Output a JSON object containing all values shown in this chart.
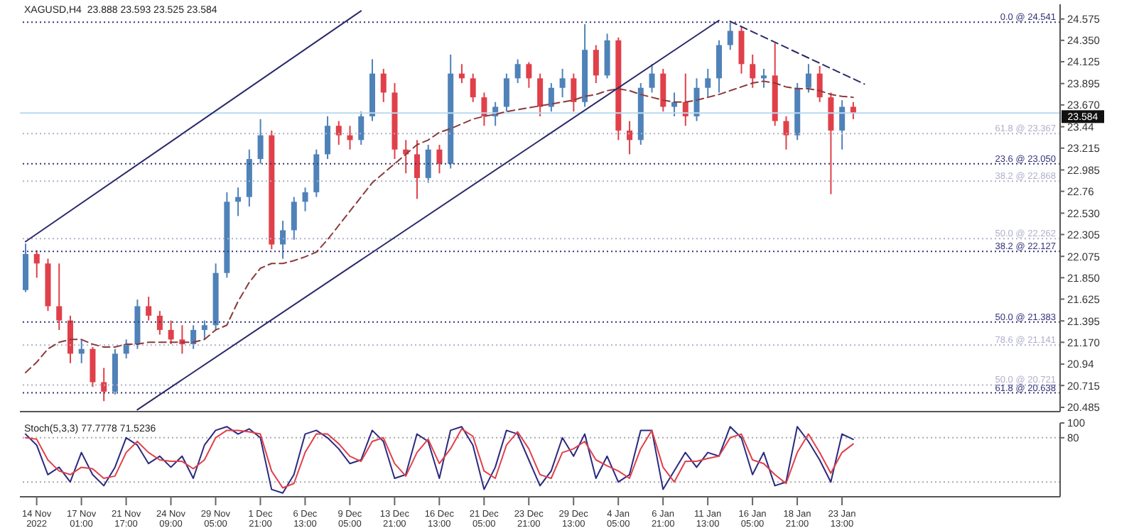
{
  "chart_data": [
    {
      "type": "candlestick",
      "title": "XAGUSD,H4  23.888 23.593 23.525 23.584",
      "categories": [
        null,
        "14 Nov 2022",
        null,
        null,
        null,
        "17 Nov 01:00",
        null,
        null,
        null,
        "21 Nov 17:00",
        null,
        null,
        null,
        "24 Nov 09:00",
        null,
        null,
        null,
        "29 Nov 05:00",
        null,
        null,
        null,
        "1 Dec 21:00",
        null,
        null,
        null,
        "6 Dec 13:00",
        null,
        null,
        null,
        "9 Dec 05:00",
        null,
        null,
        null,
        "13 Dec 21:00",
        null,
        null,
        null,
        "16 Dec 13:00",
        null,
        null,
        null,
        "21 Dec 05:00",
        null,
        null,
        null,
        "23 Dec 21:00",
        null,
        null,
        null,
        "29 Dec 13:00",
        null,
        null,
        null,
        "4 Jan 05:00",
        null,
        null,
        null,
        "6 Jan 21:00",
        null,
        null,
        null,
        "11 Jan 13:00",
        null,
        null,
        null,
        "16 Jan 05:00",
        null,
        null,
        null,
        "18 Jan 21:00",
        null,
        null,
        null,
        "23 Jan 13:00",
        null,
        null,
        null,
        null,
        null,
        null,
        null,
        null,
        null,
        null,
        null,
        null,
        null,
        null,
        null,
        null,
        null,
        null,
        null
      ],
      "ohlc": [
        [
          21.72,
          22.21,
          21.7,
          22.1
        ],
        [
          22.1,
          22.14,
          21.85,
          22.0
        ],
        [
          22.0,
          22.05,
          21.5,
          21.55
        ],
        [
          21.55,
          22.0,
          21.3,
          21.4
        ],
        [
          21.4,
          21.45,
          20.95,
          21.05
        ],
        [
          21.05,
          21.2,
          20.95,
          21.1
        ],
        [
          21.1,
          21.12,
          20.7,
          20.75
        ],
        [
          20.75,
          20.9,
          20.55,
          20.65
        ],
        [
          20.65,
          21.1,
          20.62,
          21.05
        ],
        [
          21.05,
          21.2,
          21.0,
          21.15
        ],
        [
          21.15,
          21.62,
          21.1,
          21.55
        ],
        [
          21.55,
          21.65,
          21.4,
          21.45
        ],
        [
          21.45,
          21.5,
          21.25,
          21.3
        ],
        [
          21.3,
          21.4,
          21.15,
          21.2
        ],
        [
          21.2,
          21.35,
          21.05,
          21.15
        ],
        [
          21.15,
          21.35,
          21.1,
          21.3
        ],
        [
          21.3,
          21.4,
          21.2,
          21.35
        ],
        [
          21.35,
          22.0,
          21.3,
          21.9
        ],
        [
          21.9,
          22.75,
          21.85,
          22.65
        ],
        [
          22.65,
          22.8,
          22.5,
          22.7
        ],
        [
          22.7,
          23.2,
          22.6,
          23.1
        ],
        [
          23.1,
          23.52,
          23.05,
          23.35
        ],
        [
          23.35,
          23.4,
          22.15,
          22.2
        ],
        [
          22.2,
          22.45,
          22.05,
          22.35
        ],
        [
          22.35,
          22.7,
          22.25,
          22.65
        ],
        [
          22.65,
          22.8,
          22.55,
          22.75
        ],
        [
          22.75,
          23.2,
          22.7,
          23.15
        ],
        [
          23.15,
          23.55,
          23.1,
          23.45
        ],
        [
          23.45,
          23.5,
          23.25,
          23.35
        ],
        [
          23.35,
          23.45,
          23.2,
          23.3
        ],
        [
          23.3,
          23.6,
          23.25,
          23.55
        ],
        [
          23.55,
          24.15,
          23.5,
          24.0
        ],
        [
          24.0,
          24.05,
          23.7,
          23.8
        ],
        [
          23.8,
          23.9,
          23.1,
          23.2
        ],
        [
          23.2,
          23.3,
          22.95,
          23.15
        ],
        [
          23.15,
          23.3,
          22.68,
          22.9
        ],
        [
          22.9,
          23.25,
          22.85,
          23.2
        ],
        [
          23.2,
          23.25,
          22.95,
          23.05
        ],
        [
          23.05,
          24.2,
          23.0,
          24.0
        ],
        [
          24.0,
          24.1,
          23.9,
          23.95
        ],
        [
          23.95,
          24.0,
          23.7,
          23.75
        ],
        [
          23.75,
          23.8,
          23.45,
          23.55
        ],
        [
          23.55,
          23.7,
          23.45,
          23.65
        ],
        [
          23.65,
          24.0,
          23.6,
          23.95
        ],
        [
          23.95,
          24.15,
          23.9,
          24.1
        ],
        [
          24.1,
          24.12,
          23.85,
          23.95
        ],
        [
          23.95,
          24.0,
          23.55,
          23.65
        ],
        [
          23.65,
          23.9,
          23.6,
          23.85
        ],
        [
          23.85,
          24.05,
          23.75,
          23.95
        ],
        [
          23.95,
          24.0,
          23.6,
          23.7
        ],
        [
          23.7,
          24.52,
          23.65,
          24.25
        ],
        [
          24.25,
          24.3,
          23.9,
          23.98
        ],
        [
          23.98,
          24.42,
          23.95,
          24.35
        ],
        [
          24.35,
          24.38,
          23.3,
          23.4
        ],
        [
          23.4,
          23.5,
          23.15,
          23.3
        ],
        [
          23.3,
          23.9,
          23.25,
          23.85
        ],
        [
          23.85,
          24.1,
          23.8,
          24.0
        ],
        [
          24.0,
          24.05,
          23.6,
          23.65
        ],
        [
          23.65,
          23.8,
          23.55,
          23.7
        ],
        [
          23.7,
          24.0,
          23.45,
          23.55
        ],
        [
          23.55,
          23.95,
          23.5,
          23.85
        ],
        [
          23.85,
          24.05,
          23.75,
          23.95
        ],
        [
          23.95,
          24.35,
          23.8,
          24.3
        ],
        [
          24.3,
          24.54,
          24.25,
          24.45
        ],
        [
          24.45,
          24.5,
          24.0,
          24.1
        ],
        [
          24.1,
          24.2,
          23.85,
          23.95
        ],
        [
          23.95,
          24.05,
          23.85,
          23.98
        ],
        [
          23.98,
          24.32,
          23.45,
          23.5
        ],
        [
          23.5,
          23.55,
          23.2,
          23.35
        ],
        [
          23.35,
          23.9,
          23.3,
          23.85
        ],
        [
          23.85,
          24.1,
          23.8,
          24.0
        ],
        [
          24.0,
          24.08,
          23.7,
          23.75
        ],
        [
          23.75,
          23.8,
          22.73,
          23.4
        ],
        [
          23.4,
          23.72,
          23.2,
          23.65
        ],
        [
          23.65,
          23.7,
          23.52,
          23.584
        ],
        null,
        null,
        null,
        null,
        null,
        null,
        null,
        null,
        null,
        null,
        null,
        null,
        null,
        null,
        null,
        null,
        null,
        null
      ],
      "colors": [
        "#4f82b8",
        "#e0404a",
        "#e0404a",
        "#e0404a",
        "#e0404a",
        "#4f82b8",
        "#e0404a",
        "#e0404a",
        "#4f82b8",
        "#4f82b8",
        "#4f82b8",
        "#e0404a",
        "#e0404a",
        "#e0404a",
        "#e0404a",
        "#4f82b8",
        "#4f82b8",
        "#4f82b8",
        "#4f82b8",
        "#4f82b8",
        "#4f82b8",
        "#4f82b8",
        "#e0404a",
        "#4f82b8",
        "#4f82b8",
        "#4f82b8",
        "#4f82b8",
        "#4f82b8",
        "#e0404a",
        "#e0404a",
        "#4f82b8",
        "#4f82b8",
        "#e0404a",
        "#e0404a",
        "#e0404a",
        "#e0404a",
        "#4f82b8",
        "#e0404a",
        "#4f82b8",
        "#e0404a",
        "#e0404a",
        "#e0404a",
        "#4f82b8",
        "#4f82b8",
        "#4f82b8",
        "#e0404a",
        "#e0404a",
        "#4f82b8",
        "#4f82b8",
        "#e0404a",
        "#4f82b8",
        "#e0404a",
        "#4f82b8",
        "#e0404a",
        "#e0404a",
        "#4f82b8",
        "#4f82b8",
        "#e0404a",
        "#4f82b8",
        "#e0404a",
        "#4f82b8",
        "#4f82b8",
        "#4f82b8",
        "#4f82b8",
        "#e0404a",
        "#e0404a",
        "#4f82b8",
        "#e0404a",
        "#e0404a",
        "#4f82b8",
        "#4f82b8",
        "#e0404a",
        "#e0404a",
        "#4f82b8",
        "#e0404a",
        null,
        null,
        null,
        null,
        null,
        null,
        null,
        null,
        null,
        null,
        null,
        null,
        null,
        null,
        null,
        null,
        null,
        null
      ],
      "series": [
        {
          "type": "line",
          "color": "#8b3a3a",
          "line_style": "dashed",
          "values": [
            20.85,
            20.96,
            21.1,
            21.17,
            21.2,
            21.2,
            21.15,
            21.12,
            21.12,
            21.15,
            21.15,
            21.17,
            21.17,
            21.17,
            21.17,
            21.17,
            21.2,
            21.3,
            21.35,
            21.6,
            21.8,
            21.95,
            22.0,
            22.0,
            22.03,
            22.07,
            22.12,
            22.25,
            22.4,
            22.55,
            22.7,
            22.85,
            22.95,
            23.05,
            23.15,
            23.25,
            23.3,
            23.38,
            23.42,
            23.47,
            23.52,
            23.55,
            23.57,
            23.6,
            23.62,
            23.64,
            23.66,
            23.68,
            23.7,
            23.72,
            23.76,
            23.78,
            23.82,
            23.84,
            23.82,
            23.78,
            23.75,
            23.72,
            23.7,
            23.7,
            23.72,
            23.75,
            23.78,
            23.82,
            23.86,
            23.9,
            23.92,
            23.9,
            23.86,
            23.84,
            23.84,
            23.82,
            23.78,
            23.76,
            23.75,
            null,
            null,
            null,
            null,
            null,
            null,
            null,
            null,
            null,
            null,
            null,
            null,
            null,
            null,
            null,
            null,
            null,
            null
          ]
        },
        {
          "type": "line",
          "color": "#2a2a6a",
          "line_style": "solid",
          "values": [
            22.23,
            null,
            null,
            null,
            null,
            null,
            null,
            null,
            null,
            null,
            null,
            null,
            null,
            null,
            null,
            null,
            null,
            null,
            null,
            null,
            null,
            null,
            null,
            null,
            null,
            null,
            null,
            null,
            null,
            null,
            24.66,
            null,
            null,
            null,
            null,
            null,
            null,
            null,
            null,
            null,
            null,
            null,
            null,
            null,
            null,
            null,
            null,
            null,
            null,
            null,
            null,
            null,
            null,
            null,
            null,
            null,
            null,
            null,
            null,
            null,
            null,
            null,
            null,
            null,
            null,
            null,
            null,
            null,
            null,
            null,
            null,
            null,
            null,
            null,
            null,
            null,
            null,
            null,
            null,
            null,
            null,
            null,
            null,
            null,
            null,
            null,
            null,
            null,
            null,
            null,
            null,
            null,
            null
          ]
        },
        {
          "type": "line",
          "color": "#2a2a6a",
          "line_style": "solid",
          "values": [
            null,
            null,
            null,
            null,
            null,
            null,
            null,
            null,
            null,
            null,
            20.46,
            null,
            null,
            null,
            null,
            null,
            null,
            null,
            null,
            null,
            null,
            null,
            null,
            null,
            null,
            null,
            null,
            null,
            null,
            null,
            null,
            null,
            null,
            null,
            null,
            null,
            null,
            null,
            null,
            null,
            null,
            null,
            null,
            null,
            null,
            null,
            null,
            null,
            null,
            null,
            null,
            null,
            null,
            null,
            null,
            null,
            null,
            null,
            null,
            null,
            null,
            null,
            24.56,
            null,
            null,
            null,
            null,
            null,
            null,
            null,
            null,
            null,
            null,
            null,
            null,
            null,
            null,
            null,
            null,
            null,
            null,
            null,
            null,
            null,
            null,
            null,
            null,
            null,
            null,
            null,
            null,
            null,
            null
          ]
        },
        {
          "type": "line",
          "color": "#2a2a6a",
          "line_style": "dashed",
          "values": [
            null,
            null,
            null,
            null,
            null,
            null,
            null,
            null,
            null,
            null,
            null,
            null,
            null,
            null,
            null,
            null,
            null,
            null,
            null,
            null,
            null,
            null,
            null,
            null,
            null,
            null,
            null,
            null,
            null,
            null,
            null,
            null,
            null,
            null,
            null,
            null,
            null,
            null,
            null,
            null,
            null,
            null,
            null,
            null,
            null,
            null,
            null,
            null,
            null,
            null,
            null,
            null,
            null,
            null,
            null,
            null,
            null,
            null,
            null,
            null,
            null,
            null,
            null,
            24.55,
            null,
            null,
            null,
            null,
            null,
            null,
            null,
            null,
            null,
            null,
            null,
            23.89,
            null,
            null,
            null,
            null,
            null,
            null,
            null,
            null,
            null,
            null,
            null,
            null,
            null,
            null,
            null,
            null,
            null
          ]
        }
      ],
      "ylim": [
        20.44,
        24.73
      ],
      "yticks": [
        24.575,
        {
          "value": 24.35,
          "label": "24.350"
        },
        24.125,
        23.895,
        {
          "value": 23.67,
          "label": "23.670"
        },
        23.44,
        23.215,
        22.985,
        22.76,
        {
          "value": 22.53,
          "label": "22.530"
        },
        22.305,
        22.075,
        {
          "value": 21.85,
          "label": "21.850"
        },
        21.625,
        21.395,
        {
          "value": 21.17,
          "label": "21.170"
        },
        20.94,
        20.715,
        20.485
      ],
      "ref_lines": [
        {
          "axis": "y",
          "value": 24.541,
          "label": "0.0 @ 24.541",
          "color": "#33337a",
          "line_style": "dotted"
        },
        {
          "axis": "y",
          "value": 23.367,
          "label": "61.8 @ 23.367",
          "color": "#b0b0cc",
          "line_style": "dotted"
        },
        {
          "axis": "y",
          "value": 23.05,
          "label": "23.6 @ 23.050",
          "color": "#33337a",
          "line_style": "dotted"
        },
        {
          "axis": "y",
          "value": 22.868,
          "label": "38.2 @ 22.868",
          "color": "#b0b0cc",
          "line_style": "dotted"
        },
        {
          "axis": "y",
          "value": 22.262,
          "label": "50.0 @ 22.262",
          "color": "#b0b0cc",
          "line_style": "dotted"
        },
        {
          "axis": "y",
          "value": 22.127,
          "label": "38.2 @ 22.127",
          "color": "#33337a",
          "line_style": "dotted"
        },
        {
          "axis": "y",
          "value": 21.383,
          "label": "50.0 @ 21.383",
          "color": "#33337a",
          "line_style": "dotted"
        },
        {
          "axis": "y",
          "value": 21.141,
          "label": "78.6 @ 21.141",
          "color": "#b0b0cc",
          "line_style": "dotted"
        },
        {
          "axis": "y",
          "value": 20.721,
          "label": "50.0 @ 20.721",
          "color": "#b0b0cc",
          "line_style": "dotted"
        },
        {
          "axis": "y",
          "value": 20.638,
          "label": "61.8 @ 20.638",
          "color": "#33337a",
          "line_style": "dotted"
        },
        {
          "axis": "y",
          "value": 23.584,
          "label": "23.584",
          "color": "#bcd9f0",
          "line_style": "solid"
        }
      ],
      "tick_labels": "y"
    },
    {
      "type": "line",
      "title": "Stoch(5,3,3) 77.7778 71.5236",
      "series": [
        {
          "color": "#2a2a80",
          "values": [
            85,
            70,
            30,
            40,
            20,
            60,
            30,
            15,
            40,
            80,
            70,
            45,
            55,
            40,
            55,
            25,
            70,
            90,
            95,
            85,
            92,
            80,
            10,
            5,
            30,
            85,
            90,
            80,
            65,
            45,
            50,
            90,
            75,
            25,
            30,
            85,
            75,
            25,
            90,
            95,
            70,
            10,
            40,
            90,
            85,
            50,
            15,
            35,
            80,
            55,
            85,
            25,
            55,
            20,
            30,
            90,
            90,
            10,
            35,
            60,
            40,
            60,
            55,
            95,
            80,
            30,
            60,
            15,
            20,
            95,
            75,
            50,
            20,
            85,
            77.7778,
            null,
            null,
            null,
            null,
            null,
            null,
            null,
            null,
            null,
            null,
            null,
            null,
            null,
            null,
            null,
            null,
            null,
            null
          ]
        },
        {
          "color": "#e0404a",
          "values": [
            80,
            78,
            50,
            35,
            30,
            40,
            38,
            25,
            28,
            60,
            75,
            60,
            50,
            48,
            48,
            38,
            50,
            80,
            90,
            90,
            88,
            85,
            35,
            12,
            18,
            60,
            85,
            85,
            72,
            55,
            48,
            75,
            80,
            45,
            28,
            60,
            78,
            45,
            65,
            92,
            82,
            35,
            25,
            70,
            88,
            65,
            30,
            25,
            60,
            65,
            75,
            50,
            42,
            35,
            25,
            65,
            90,
            40,
            20,
            48,
            48,
            52,
            55,
            80,
            85,
            50,
            45,
            30,
            18,
            60,
            85,
            60,
            32,
            60,
            71.5236,
            null,
            null,
            null,
            null,
            null,
            null,
            null,
            null,
            null,
            null,
            null,
            null,
            null,
            null,
            null,
            null,
            null,
            null
          ]
        }
      ],
      "ylim": [
        0,
        100
      ],
      "yticks": [
        80,
        100
      ],
      "ref_lines": [
        {
          "axis": "y",
          "value": 80,
          "color": "#aaaaaa",
          "line_style": "dotted"
        },
        {
          "axis": "y",
          "value": 20,
          "color": "#aaaaaa",
          "line_style": "dotted"
        }
      ]
    }
  ]
}
